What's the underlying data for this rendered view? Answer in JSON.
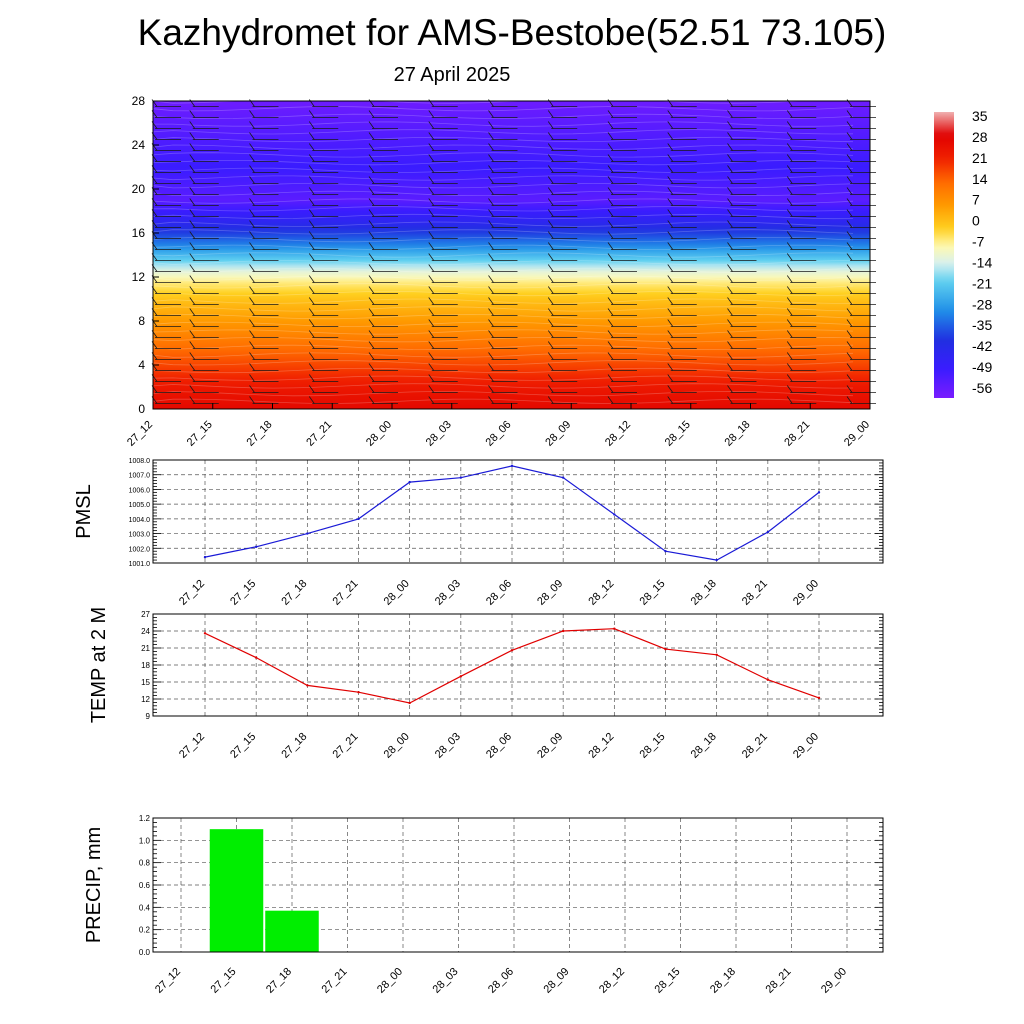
{
  "page": {
    "title": "Kazhydromet for AMS-Bestobe(52.51 73.105)",
    "subtitle": "27 April 2025"
  },
  "chart_data": [
    {
      "type": "heatmap",
      "name": "vertical-cross-section",
      "x_labels": [
        "27_12",
        "27_15",
        "27_18",
        "27_21",
        "28_00",
        "28_03",
        "28_06",
        "28_09",
        "28_12",
        "28_15",
        "28_18",
        "28_21",
        "29_00"
      ],
      "y_ticks": [
        0,
        4,
        8,
        12,
        16,
        20,
        24,
        28
      ],
      "ylim": [
        0,
        28
      ],
      "colorbar_labels": [
        "35",
        "28",
        "21",
        "14",
        "7",
        "0",
        "-7",
        "-14",
        "-21",
        "-28",
        "-35",
        "-42",
        "-49",
        "-56"
      ],
      "colorbar_range": [
        -60,
        38
      ],
      "colors": {
        "warm": "#e00000",
        "neutral": "#fff7a0",
        "cold": "#7a2cff"
      },
      "profile": {
        "heights": [
          0,
          2,
          4,
          6,
          8,
          10,
          11.5,
          12.5,
          13.5,
          15,
          17,
          19,
          22,
          25,
          28
        ],
        "temps": [
          28,
          24,
          18,
          12,
          6,
          0,
          -6,
          -12,
          -20,
          -32,
          -45,
          -55,
          -50,
          -54,
          -58
        ]
      },
      "wind_barbs": true
    },
    {
      "type": "line",
      "name": "pmsl",
      "ylabel": "PMSL",
      "x": [
        "27_12",
        "27_15",
        "27_18",
        "27_21",
        "28_00",
        "28_03",
        "28_06",
        "28_09",
        "28_12",
        "28_15",
        "28_18",
        "28_21",
        "29_00"
      ],
      "values": [
        1001.4,
        1002.1,
        1003.0,
        1004.0,
        1006.5,
        1006.8,
        1007.6,
        1006.8,
        1004.3,
        1001.8,
        1001.2,
        1003.1,
        1005.8
      ],
      "ylim": [
        1001.0,
        1008.0
      ],
      "y_ticks": [
        "1001.0",
        "1002.0",
        "1003.0",
        "1004.0",
        "1005.0",
        "1006.0",
        "1007.0",
        "1008.0"
      ],
      "color": "#1a1ad6",
      "grid": true
    },
    {
      "type": "line",
      "name": "temp-2m",
      "ylabel": "TEMP at 2 M",
      "x": [
        "27_12",
        "27_15",
        "27_18",
        "27_21",
        "28_00",
        "28_03",
        "28_06",
        "28_09",
        "28_12",
        "28_15",
        "28_18",
        "28_21",
        "29_00"
      ],
      "values": [
        23.6,
        19.3,
        14.4,
        13.2,
        11.3,
        16.0,
        20.6,
        24.0,
        24.4,
        20.8,
        19.8,
        15.4,
        12.2
      ],
      "ylim": [
        9,
        27
      ],
      "y_ticks": [
        "9",
        "12",
        "15",
        "18",
        "21",
        "24",
        "27"
      ],
      "color": "#e00000",
      "grid": true
    },
    {
      "type": "bar",
      "name": "precip",
      "ylabel": "PRECIP, mm",
      "categories": [
        "27_12",
        "27_15",
        "27_18",
        "27_21",
        "28_00",
        "28_03",
        "28_06",
        "28_09",
        "28_12",
        "28_15",
        "28_18",
        "28_21",
        "29_00"
      ],
      "values": [
        0,
        1.1,
        0.37,
        0,
        0,
        0,
        0,
        0,
        0,
        0,
        0,
        0,
        0
      ],
      "ylim": [
        0,
        1.2
      ],
      "y_ticks": [
        "0.0",
        "0.2",
        "0.4",
        "0.6",
        "0.8",
        "1.0",
        "1.2"
      ],
      "color": "#00ee00",
      "grid": true
    }
  ]
}
